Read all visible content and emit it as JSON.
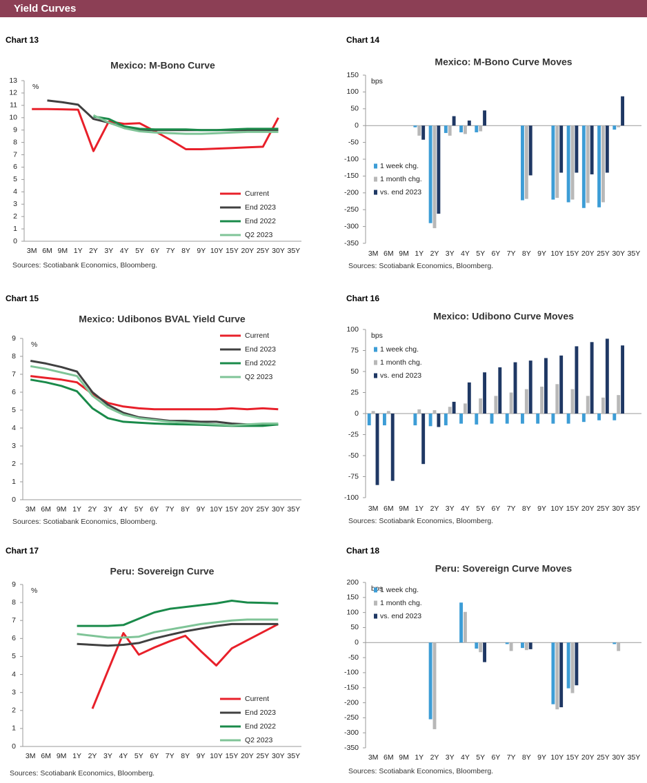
{
  "header": {
    "title": "Yield Curves"
  },
  "chart_data": [
    {
      "type": "line",
      "label": "Chart 13",
      "title": "Mexico: M-Bono Curve",
      "y_unit": "%",
      "source": "Sources: Scotiabank Economics, Bloomberg.",
      "categories": [
        "3M",
        "6M",
        "9M",
        "1Y",
        "2Y",
        "3Y",
        "4Y",
        "5Y",
        "6Y",
        "7Y",
        "8Y",
        "9Y",
        "10Y",
        "15Y",
        "20Y",
        "25Y",
        "30Y",
        "35Y"
      ],
      "ylim": [
        0,
        13
      ],
      "yticks": [
        0,
        1,
        2,
        3,
        4,
        5,
        6,
        7,
        8,
        9,
        10,
        11,
        12,
        13
      ],
      "legend": "lower right",
      "series": [
        {
          "name": "Current",
          "color": "#e8202a",
          "values": [
            10.7,
            10.7,
            10.68,
            10.65,
            7.3,
            9.7,
            9.5,
            9.55,
            8.9,
            8.2,
            7.45,
            7.45,
            7.5,
            7.55,
            7.6,
            7.65,
            10.0,
            null
          ]
        },
        {
          "name": "End 2023",
          "color": "#404040",
          "values": [
            null,
            11.4,
            11.25,
            11.05,
            9.9,
            9.6,
            9.2,
            9.0,
            9.0,
            9.0,
            9.0,
            9.0,
            9.0,
            9.0,
            9.0,
            9.0,
            9.0,
            null
          ]
        },
        {
          "name": "End 2022",
          "color": "#1a8a4a",
          "values": [
            null,
            null,
            null,
            null,
            10.1,
            9.9,
            9.3,
            9.1,
            9.05,
            9.05,
            9.05,
            9.0,
            9.0,
            9.05,
            9.1,
            9.1,
            9.1,
            null
          ]
        },
        {
          "name": "Q2 2023",
          "color": "#7fc497",
          "values": [
            null,
            null,
            null,
            null,
            10.2,
            9.6,
            9.15,
            8.9,
            8.8,
            8.75,
            8.7,
            8.7,
            8.75,
            8.8,
            8.85,
            8.85,
            8.85,
            null
          ]
        }
      ]
    },
    {
      "type": "bar",
      "label": "Chart 14",
      "title": "Mexico: M-Bono Curve Moves",
      "y_unit": "bps",
      "source": "Sources: Scotiabank Economics, Bloomberg.",
      "categories": [
        "3M",
        "6M",
        "9M",
        "1Y",
        "2Y",
        "3Y",
        "4Y",
        "5Y",
        "6Y",
        "7Y",
        "8Y",
        "9Y",
        "10Y",
        "15Y",
        "20Y",
        "25Y",
        "30Y",
        "35Y"
      ],
      "ylim": [
        -350,
        150
      ],
      "yticks": [
        -350,
        -300,
        -250,
        -200,
        -150,
        -100,
        -50,
        0,
        50,
        100,
        150
      ],
      "legend": "center left",
      "series": [
        {
          "name": "1 week chg.",
          "color": "#3d9dd6",
          "values": [
            null,
            null,
            null,
            -5,
            -290,
            -22,
            -20,
            -20,
            null,
            null,
            -222,
            null,
            -220,
            -228,
            -245,
            -243,
            -12,
            null
          ]
        },
        {
          "name": "1 month chg.",
          "color": "#b8b8b8",
          "values": [
            null,
            null,
            null,
            -30,
            -305,
            -30,
            -25,
            -17,
            null,
            null,
            -218,
            null,
            -215,
            -220,
            -230,
            -228,
            -5,
            null
          ]
        },
        {
          "name": "vs. end 2023",
          "color": "#1f3864",
          "values": [
            null,
            null,
            null,
            -42,
            -262,
            28,
            15,
            45,
            null,
            null,
            -148,
            null,
            -140,
            -140,
            -145,
            -140,
            87,
            null
          ]
        }
      ]
    },
    {
      "type": "line",
      "label": "Chart 15",
      "title": "Mexico: Udibonos BVAL Yield Curve",
      "y_unit": "%",
      "source": "Sources: Scotiabank Economics, Bloomberg.",
      "categories": [
        "3M",
        "6M",
        "9M",
        "1Y",
        "2Y",
        "3Y",
        "4Y",
        "5Y",
        "6Y",
        "7Y",
        "8Y",
        "9Y",
        "10Y",
        "15Y",
        "20Y",
        "25Y",
        "30Y",
        "35Y"
      ],
      "ylim": [
        0,
        9
      ],
      "yticks": [
        0,
        1,
        2,
        3,
        4,
        5,
        6,
        7,
        8,
        9
      ],
      "legend": "upper right",
      "series": [
        {
          "name": "Current",
          "color": "#e8202a",
          "values": [
            6.9,
            6.8,
            6.7,
            6.55,
            5.9,
            5.4,
            5.2,
            5.1,
            5.05,
            5.05,
            5.05,
            5.05,
            5.05,
            5.1,
            5.05,
            5.1,
            5.05,
            null
          ]
        },
        {
          "name": "End 2023",
          "color": "#404040",
          "values": [
            7.75,
            7.6,
            7.4,
            7.15,
            6.0,
            5.3,
            4.85,
            4.6,
            4.5,
            4.4,
            4.4,
            4.35,
            4.35,
            4.25,
            4.2,
            4.2,
            4.2,
            null
          ]
        },
        {
          "name": "End 2022",
          "color": "#1a8a4a",
          "values": [
            6.7,
            6.55,
            6.35,
            6.05,
            5.1,
            4.55,
            4.35,
            4.3,
            4.25,
            4.22,
            4.2,
            4.18,
            4.15,
            4.12,
            4.12,
            4.12,
            4.2,
            null
          ]
        },
        {
          "name": "Q2 2023",
          "color": "#7fc497",
          "values": [
            7.45,
            7.3,
            7.1,
            6.9,
            5.8,
            5.15,
            4.75,
            4.55,
            4.45,
            4.35,
            4.3,
            4.25,
            4.2,
            4.15,
            4.2,
            4.25,
            4.25,
            null
          ]
        }
      ]
    },
    {
      "type": "bar",
      "label": "Chart 16",
      "title": "Mexico: Udibono Curve Moves",
      "y_unit": "bps",
      "source": "Sources: Scotiabank Economics, Bloomberg.",
      "categories": [
        "3M",
        "6M",
        "9M",
        "1Y",
        "2Y",
        "3Y",
        "4Y",
        "5Y",
        "6Y",
        "7Y",
        "8Y",
        "9Y",
        "10Y",
        "15Y",
        "20Y",
        "25Y",
        "30Y",
        "35Y"
      ],
      "ylim": [
        -100,
        100
      ],
      "yticks": [
        -100,
        -75,
        -50,
        -25,
        0,
        25,
        50,
        75,
        100
      ],
      "legend": "upper left",
      "series": [
        {
          "name": "1 week chg.",
          "color": "#3d9dd6",
          "values": [
            -14,
            -14,
            null,
            -14,
            -15,
            -14,
            -12,
            -13,
            -12,
            -12,
            -12,
            -12,
            -12,
            -12,
            -10,
            -8,
            -8,
            null
          ]
        },
        {
          "name": "1 month chg.",
          "color": "#b8b8b8",
          "values": [
            3,
            3,
            null,
            5,
            4,
            8,
            12,
            18,
            21,
            25,
            29,
            32,
            35,
            29,
            21,
            19,
            22,
            null
          ]
        },
        {
          "name": "vs. end 2023",
          "color": "#1f3864",
          "values": [
            -85,
            -80,
            null,
            -60,
            -16,
            14,
            37,
            49,
            55,
            61,
            63,
            66,
            69,
            80,
            85,
            89,
            81,
            null
          ]
        }
      ]
    },
    {
      "type": "line",
      "label": "Chart 17",
      "title": "Peru: Sovereign Curve",
      "y_unit": "%",
      "source": "Sources: Scotiabank Economics, Bloomberg.",
      "categories": [
        "3M",
        "6M",
        "9M",
        "1Y",
        "2Y",
        "3Y",
        "4Y",
        "5Y",
        "6Y",
        "7Y",
        "8Y",
        "9Y",
        "10Y",
        "15Y",
        "20Y",
        "25Y",
        "30Y",
        "35Y"
      ],
      "ylim": [
        0,
        9
      ],
      "yticks": [
        0,
        1,
        2,
        3,
        4,
        5,
        6,
        7,
        8,
        9
      ],
      "legend": "lower right",
      "series": [
        {
          "name": "Current",
          "color": "#e8202a",
          "values": [
            null,
            null,
            null,
            null,
            2.1,
            4.2,
            6.3,
            5.1,
            5.5,
            5.85,
            6.15,
            5.3,
            4.5,
            5.45,
            5.9,
            6.35,
            6.8,
            null
          ]
        },
        {
          "name": "End 2023",
          "color": "#404040",
          "values": [
            null,
            null,
            null,
            5.7,
            5.65,
            5.6,
            5.65,
            5.75,
            6.0,
            6.2,
            6.4,
            6.55,
            6.7,
            6.8,
            6.8,
            6.8,
            6.8,
            null
          ]
        },
        {
          "name": "End 2022",
          "color": "#1a8a4a",
          "values": [
            null,
            null,
            null,
            6.7,
            6.7,
            6.7,
            6.75,
            7.1,
            7.45,
            7.65,
            7.75,
            7.85,
            7.95,
            8.1,
            8.0,
            7.98,
            7.95,
            null
          ]
        },
        {
          "name": "Q2 2023",
          "color": "#7fc497",
          "values": [
            null,
            null,
            null,
            6.25,
            6.15,
            6.05,
            6.05,
            6.1,
            6.35,
            6.5,
            6.65,
            6.8,
            6.9,
            7.0,
            7.05,
            7.05,
            7.05,
            null
          ]
        }
      ]
    },
    {
      "type": "bar",
      "label": "Chart 18",
      "title": "Peru: Sovereign Curve Moves",
      "y_unit": "bps",
      "source": "Sources: Scotiabank Economics, Bloomberg.",
      "categories": [
        "3M",
        "6M",
        "9M",
        "1Y",
        "2Y",
        "3Y",
        "4Y",
        "5Y",
        "6Y",
        "7Y",
        "8Y",
        "9Y",
        "10Y",
        "15Y",
        "20Y",
        "25Y",
        "30Y",
        "35Y"
      ],
      "ylim": [
        -350,
        200
      ],
      "yticks": [
        -350,
        -300,
        -250,
        -200,
        -150,
        -100,
        -50,
        0,
        50,
        100,
        150,
        200
      ],
      "legend": "upper left",
      "series": [
        {
          "name": "1 week chg.",
          "color": "#3d9dd6",
          "values": [
            null,
            null,
            null,
            null,
            -255,
            null,
            133,
            -20,
            null,
            -5,
            -18,
            null,
            -205,
            -152,
            null,
            null,
            -5,
            null
          ]
        },
        {
          "name": "1 month chg.",
          "color": "#b8b8b8",
          "values": [
            null,
            null,
            null,
            null,
            -288,
            null,
            102,
            -32,
            null,
            -28,
            -25,
            null,
            -222,
            -168,
            null,
            null,
            -28,
            null
          ]
        },
        {
          "name": "vs. end 2023",
          "color": "#1f3864",
          "values": [
            null,
            null,
            null,
            null,
            null,
            null,
            null,
            -65,
            null,
            null,
            -22,
            null,
            -215,
            -142,
            null,
            null,
            null,
            null
          ]
        }
      ]
    }
  ]
}
